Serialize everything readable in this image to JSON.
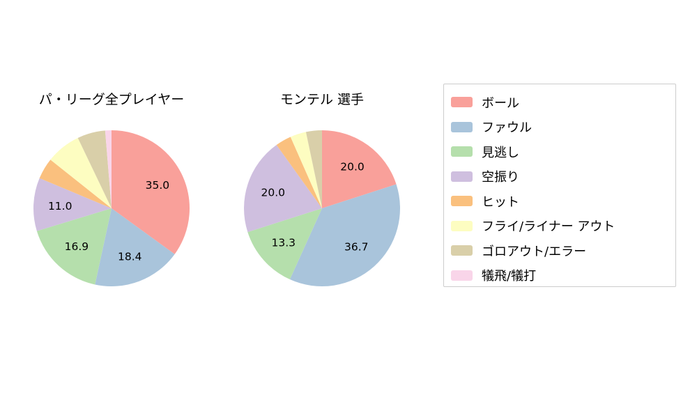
{
  "chart_data": [
    {
      "type": "pie",
      "title": "パ・リーグ全プレイヤー",
      "labels": [
        "ボール",
        "ファウル",
        "見逃し",
        "空振り",
        "ヒット",
        "フライ/ライナー アウト",
        "ゴロアウト/エラー",
        "犠飛/犠打"
      ],
      "values": [
        35.0,
        18.4,
        16.9,
        11.0,
        4.4,
        7.2,
        5.8,
        1.3
      ],
      "start_angle": 90,
      "direction": "clockwise",
      "label_threshold": 10,
      "shown_value_labels": [
        "35.0",
        "18.4",
        "16.9",
        "11.0"
      ]
    },
    {
      "type": "pie",
      "title": "モンテル  選手",
      "labels": [
        "ボール",
        "ファウル",
        "見逃し",
        "空振り",
        "ヒット",
        "フライ/ライナー アウト",
        "ゴロアウト/エラー",
        "犠飛/犠打"
      ],
      "values": [
        20.0,
        36.7,
        13.3,
        20.0,
        3.3,
        3.3,
        3.3,
        0
      ],
      "start_angle": 90,
      "direction": "clockwise",
      "label_threshold": 10,
      "shown_value_labels": [
        "20.0",
        "36.7",
        "13.3",
        "20.0"
      ]
    }
  ],
  "legend": {
    "position": "right",
    "items": [
      {
        "label": "ボール",
        "color": "#F9A09A"
      },
      {
        "label": "ファウル",
        "color": "#A9C4DB"
      },
      {
        "label": "見逃し",
        "color": "#B5DFAC"
      },
      {
        "label": "空振り",
        "color": "#CFBFDF"
      },
      {
        "label": "ヒット",
        "color": "#FAC07E"
      },
      {
        "label": "フライ/ライナー アウト",
        "color": "#FDFDC1"
      },
      {
        "label": "ゴロアウト/エラー",
        "color": "#D9CFA9"
      },
      {
        "label": "犠飛/犠打",
        "color": "#F9D5E9"
      }
    ]
  }
}
